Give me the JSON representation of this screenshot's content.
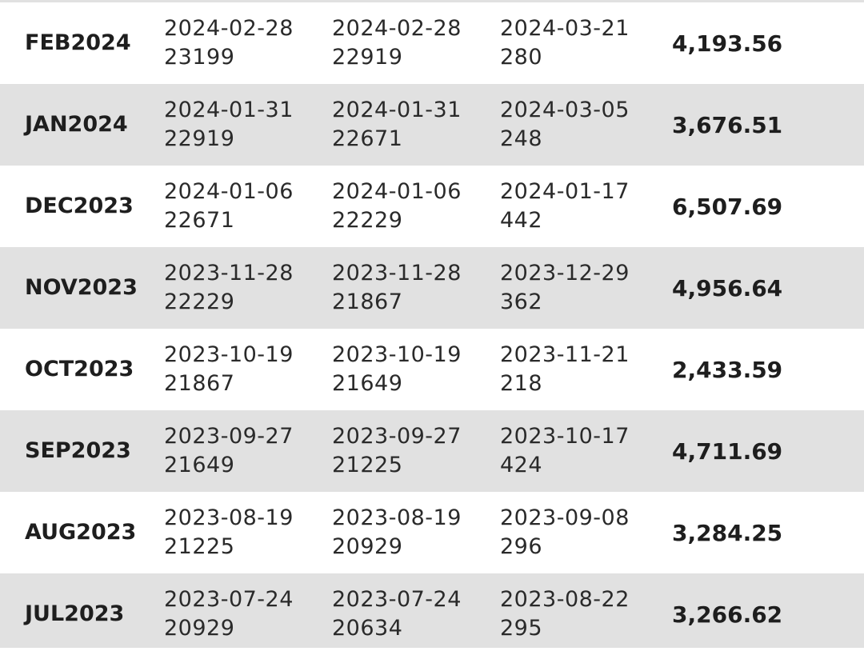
{
  "table": {
    "rows": [
      {
        "month": "FEB2024",
        "col1": {
          "date": "2024-02-28",
          "num": "23199"
        },
        "col2": {
          "date": "2024-02-28",
          "num": "22919"
        },
        "col3": {
          "date": "2024-03-21",
          "num": "280"
        },
        "amount": "4,193.56"
      },
      {
        "month": "JAN2024",
        "col1": {
          "date": "2024-01-31",
          "num": "22919"
        },
        "col2": {
          "date": "2024-01-31",
          "num": "22671"
        },
        "col3": {
          "date": "2024-03-05",
          "num": "248"
        },
        "amount": "3,676.51"
      },
      {
        "month": "DEC2023",
        "col1": {
          "date": "2024-01-06",
          "num": "22671"
        },
        "col2": {
          "date": "2024-01-06",
          "num": "22229"
        },
        "col3": {
          "date": "2024-01-17",
          "num": "442"
        },
        "amount": "6,507.69"
      },
      {
        "month": "NOV2023",
        "col1": {
          "date": "2023-11-28",
          "num": "22229"
        },
        "col2": {
          "date": "2023-11-28",
          "num": "21867"
        },
        "col3": {
          "date": "2023-12-29",
          "num": "362"
        },
        "amount": "4,956.64"
      },
      {
        "month": "OCT2023",
        "col1": {
          "date": "2023-10-19",
          "num": "21867"
        },
        "col2": {
          "date": "2023-10-19",
          "num": "21649"
        },
        "col3": {
          "date": "2023-11-21",
          "num": "218"
        },
        "amount": "2,433.59"
      },
      {
        "month": "SEP2023",
        "col1": {
          "date": "2023-09-27",
          "num": "21649"
        },
        "col2": {
          "date": "2023-09-27",
          "num": "21225"
        },
        "col3": {
          "date": "2023-10-17",
          "num": "424"
        },
        "amount": "4,711.69"
      },
      {
        "month": "AUG2023",
        "col1": {
          "date": "2023-08-19",
          "num": "21225"
        },
        "col2": {
          "date": "2023-08-19",
          "num": "20929"
        },
        "col3": {
          "date": "2023-09-08",
          "num": "296"
        },
        "amount": "3,284.25"
      },
      {
        "month": "JUL2023",
        "col1": {
          "date": "2023-07-24",
          "num": "20929"
        },
        "col2": {
          "date": "2023-07-24",
          "num": "20634"
        },
        "col3": {
          "date": "2023-08-22",
          "num": "295"
        },
        "amount": "3,266.62"
      }
    ]
  },
  "colors": {
    "row_alt_bg": "#e1e1e1",
    "row_plain_bg": "#ffffff",
    "text": "#1e1e1e"
  }
}
